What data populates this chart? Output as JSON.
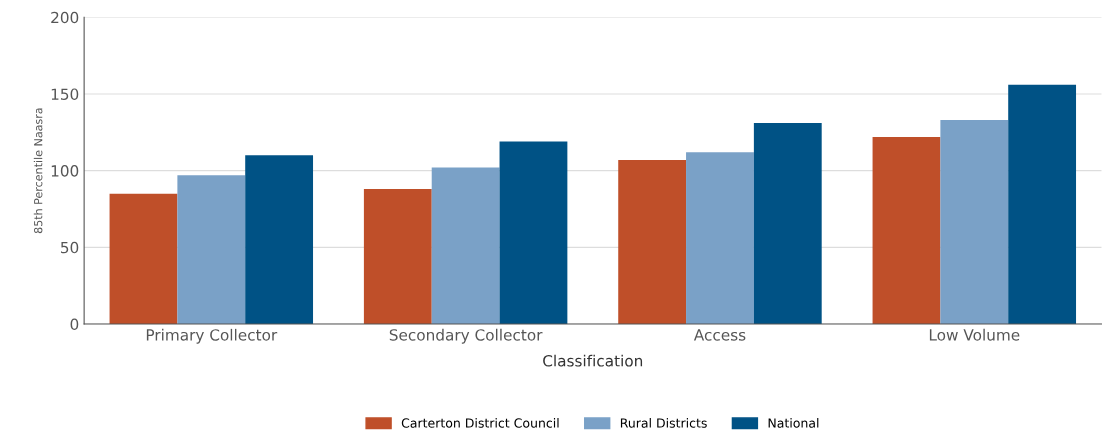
{
  "chart_data": {
    "type": "bar",
    "xlabel": "Classification",
    "ylabel": "85th Percentile Naasra",
    "categories": [
      "Primary Collector",
      "Secondary Collector",
      "Access",
      "Low Volume"
    ],
    "series": [
      {
        "name": "Carterton District Council",
        "color": "#bf4f29",
        "values": [
          85,
          88,
          107,
          122
        ]
      },
      {
        "name": "Rural Districts",
        "color": "#7aa1c7",
        "values": [
          97,
          102,
          112,
          133
        ]
      },
      {
        "name": "National",
        "color": "#005285",
        "values": [
          110,
          119,
          131,
          156
        ]
      }
    ],
    "ylim": [
      0,
      200
    ],
    "yticks": [
      0,
      50,
      100,
      150,
      200
    ],
    "grid": "y",
    "legend": "bottom"
  }
}
